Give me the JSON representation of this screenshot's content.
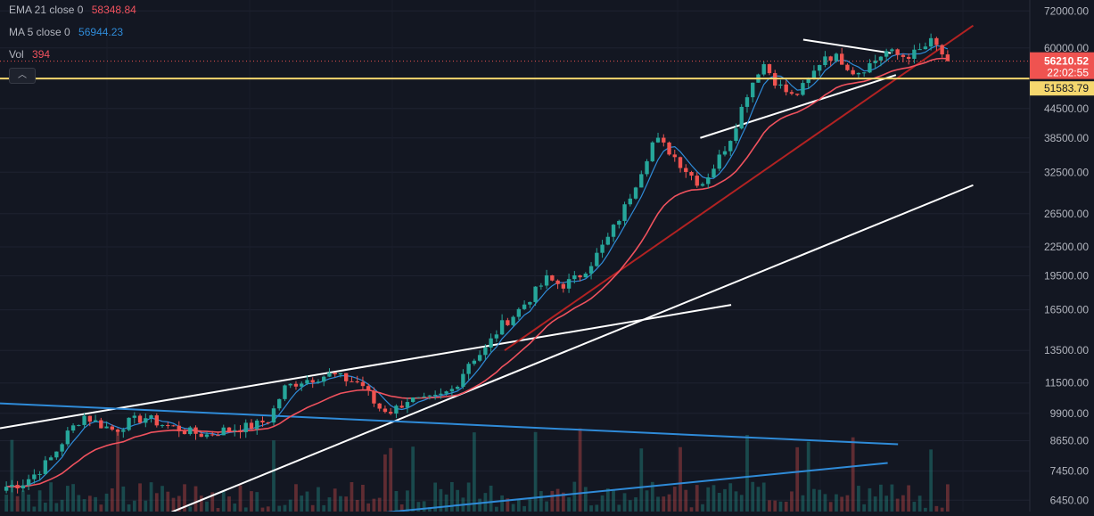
{
  "legend": {
    "ema": {
      "name": "EMA 21 close 0",
      "value": "58348.84",
      "color": "#f0525e"
    },
    "ma": {
      "name": "MA 5 close 0",
      "value": "56944.23",
      "color": "#2f8bd8"
    },
    "vol": {
      "name": "Vol",
      "value": "394",
      "color": "#f0525e"
    }
  },
  "collapse_icon": "chevron-up-icon",
  "price_badges": {
    "last_price": "56210.52",
    "countdown": "22:02:55",
    "horizontal_level": "51583.79"
  },
  "colors": {
    "background": "#131722",
    "up": "#26a69a",
    "down": "#ef5350",
    "ema": "#f0525e",
    "ma": "#2f8bd8",
    "level_line": "#f5d76e",
    "red_trendline": "#b22222",
    "white_trendline": "#ffffff",
    "blue_trendline": "#2f8bd8",
    "axis_text": "#b2b5be"
  },
  "chart_data": {
    "type": "candlestick",
    "y_scale": "log",
    "ylim": [
      6100,
      76000
    ],
    "y_ticks": [
      "72000.00",
      "60000.00",
      "44500.00",
      "38500.00",
      "32500.00",
      "26500.00",
      "22500.00",
      "19500.00",
      "16500.00",
      "13500.00",
      "11500.00",
      "9900.00",
      "8650.00",
      "7450.00",
      "6450.00"
    ],
    "ema21": "58348.84",
    "ma5": "56944.23",
    "volume": "394",
    "price_path": [
      6900,
      7000,
      7400,
      8000,
      9000,
      9800,
      9400,
      9100,
      9500,
      9700,
      9400,
      9200,
      9000,
      8900,
      9100,
      9200,
      9300,
      9600,
      11200,
      11600,
      11800,
      12000,
      11700,
      11500,
      10200,
      10000,
      10600,
      10500,
      10700,
      11200,
      12800,
      13500,
      15200,
      16200,
      17600,
      19200,
      18600,
      19300,
      21000,
      23500,
      27000,
      32000,
      38500,
      36000,
      33000,
      30500,
      34000,
      39000,
      48000,
      56000,
      50000,
      47000,
      51000,
      58000,
      57000,
      53000,
      55500,
      59000,
      57500,
      58500,
      62000,
      56210
    ],
    "trendlines": [
      {
        "color": "white",
        "from": [
          0,
          9200
        ],
        "to": [
          0.71,
          16900
        ]
      },
      {
        "color": "white",
        "from": [
          0.16,
          6000
        ],
        "to": [
          0.945,
          30500
        ]
      },
      {
        "color": "white",
        "from": [
          0.68,
          38500
        ],
        "to": [
          0.87,
          52500
        ]
      },
      {
        "color": "white",
        "from": [
          0.78,
          62500
        ],
        "to": [
          0.865,
          58500
        ]
      },
      {
        "color": "red",
        "from": [
          0.49,
          13500
        ],
        "to": [
          0.945,
          67000
        ]
      },
      {
        "color": "blue",
        "from": [
          0,
          10400
        ],
        "to": [
          0.872,
          8500
        ]
      },
      {
        "color": "blue",
        "from": [
          0.35,
          6000
        ],
        "to": [
          0.862,
          7750
        ]
      }
    ],
    "horizontal_level": 51583.79
  }
}
